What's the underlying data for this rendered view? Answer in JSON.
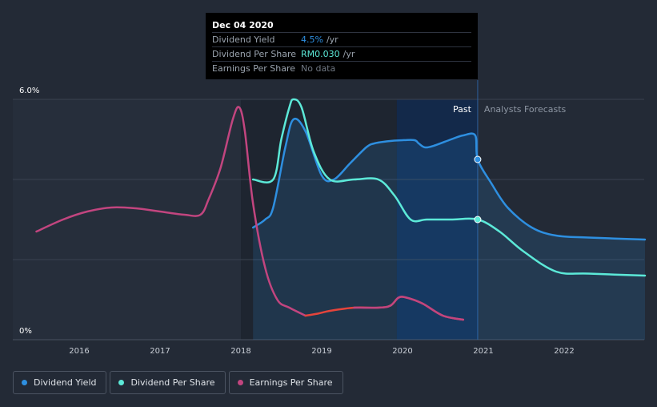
{
  "tooltip": {
    "date": "Dec 04 2020",
    "rows": [
      {
        "label": "Dividend Yield",
        "value": "4.5%",
        "unit": "/yr",
        "color": "#2e8fe0"
      },
      {
        "label": "Dividend Per Share",
        "value": "RM0.030",
        "unit": "/yr",
        "color": "#5ce9d8"
      },
      {
        "label": "Earnings Per Share",
        "value": "No data",
        "unit": "",
        "color": "#6f7782"
      }
    ]
  },
  "legend": [
    {
      "label": "Dividend Yield",
      "color": "#2e8fe0"
    },
    {
      "label": "Dividend Per Share",
      "color": "#5ce9d8"
    },
    {
      "label": "Earnings Per Share",
      "color": "#c2457f"
    }
  ],
  "chart_data": {
    "type": "line",
    "y_tick_labels": [
      "6.0%",
      "0%"
    ],
    "ylim": [
      0,
      6
    ],
    "xlim": [
      2015.5,
      2023.0
    ],
    "x_tick_labels": [
      "2016",
      "2017",
      "2018",
      "2019",
      "2020",
      "2021",
      "2022"
    ],
    "past_label": "Past",
    "forecast_label": "Analysts Forecasts",
    "forecast_start": 2020.93,
    "highlight_start": 2019.93,
    "colors": {
      "eps_decline": "#e5443b",
      "background": "#232a36"
    },
    "series": [
      {
        "name": "Dividend Yield",
        "color": "#2e8fe0",
        "fill": true,
        "x": [
          2018.15,
          2018.3,
          2018.4,
          2018.55,
          2018.65,
          2018.8,
          2019.0,
          2019.15,
          2019.35,
          2019.55,
          2019.65,
          2019.8,
          2020.0,
          2020.15,
          2020.2,
          2020.28,
          2020.4,
          2020.6,
          2020.75,
          2020.9,
          2020.93,
          2021.1,
          2021.3,
          2021.6,
          2021.9,
          2022.3,
          2023.0
        ],
        "y": [
          2.8,
          3.0,
          3.3,
          4.8,
          5.5,
          5.2,
          4.1,
          4.0,
          4.4,
          4.8,
          4.9,
          4.95,
          4.98,
          4.98,
          4.9,
          4.8,
          4.85,
          5.0,
          5.1,
          5.1,
          4.5,
          3.9,
          3.3,
          2.8,
          2.6,
          2.55,
          2.5
        ]
      },
      {
        "name": "Dividend Per Share",
        "color": "#5ce9d8",
        "x": [
          2018.15,
          2018.4,
          2018.5,
          2018.6,
          2018.65,
          2018.75,
          2018.9,
          2019.1,
          2019.4,
          2019.7,
          2019.9,
          2020.1,
          2020.3,
          2020.6,
          2020.93,
          2021.2,
          2021.5,
          2021.9,
          2022.3,
          2023.0
        ],
        "y": [
          4.0,
          4.0,
          5.0,
          5.8,
          6.0,
          5.8,
          4.7,
          4.0,
          4.0,
          4.0,
          3.6,
          3.0,
          3.0,
          3.0,
          3.0,
          2.7,
          2.2,
          1.7,
          1.65,
          1.6
        ]
      },
      {
        "name": "Earnings Per Share",
        "color": "#c2457f",
        "x": [
          2015.47,
          2015.8,
          2016.1,
          2016.4,
          2016.7,
          2017.0,
          2017.3,
          2017.5,
          2017.6,
          2017.75,
          2017.9,
          2017.98,
          2018.05,
          2018.15,
          2018.3,
          2018.45,
          2018.6,
          2018.8,
          2018.95,
          2019.1,
          2019.4,
          2019.7,
          2019.85,
          2019.95,
          2020.05,
          2020.25,
          2020.5,
          2020.75
        ],
        "y": [
          2.7,
          3.0,
          3.2,
          3.3,
          3.28,
          3.2,
          3.12,
          3.12,
          3.5,
          4.3,
          5.5,
          5.8,
          5.2,
          3.4,
          1.8,
          1.0,
          0.8,
          0.6,
          0.65,
          0.72,
          0.8,
          0.8,
          0.85,
          1.05,
          1.05,
          0.9,
          0.6,
          0.5
        ]
      }
    ],
    "markers": [
      {
        "series": "Dividend Yield",
        "x": 2020.93,
        "y": 4.5
      },
      {
        "series": "Dividend Per Share",
        "x": 2020.93,
        "y": 3.0
      }
    ]
  }
}
